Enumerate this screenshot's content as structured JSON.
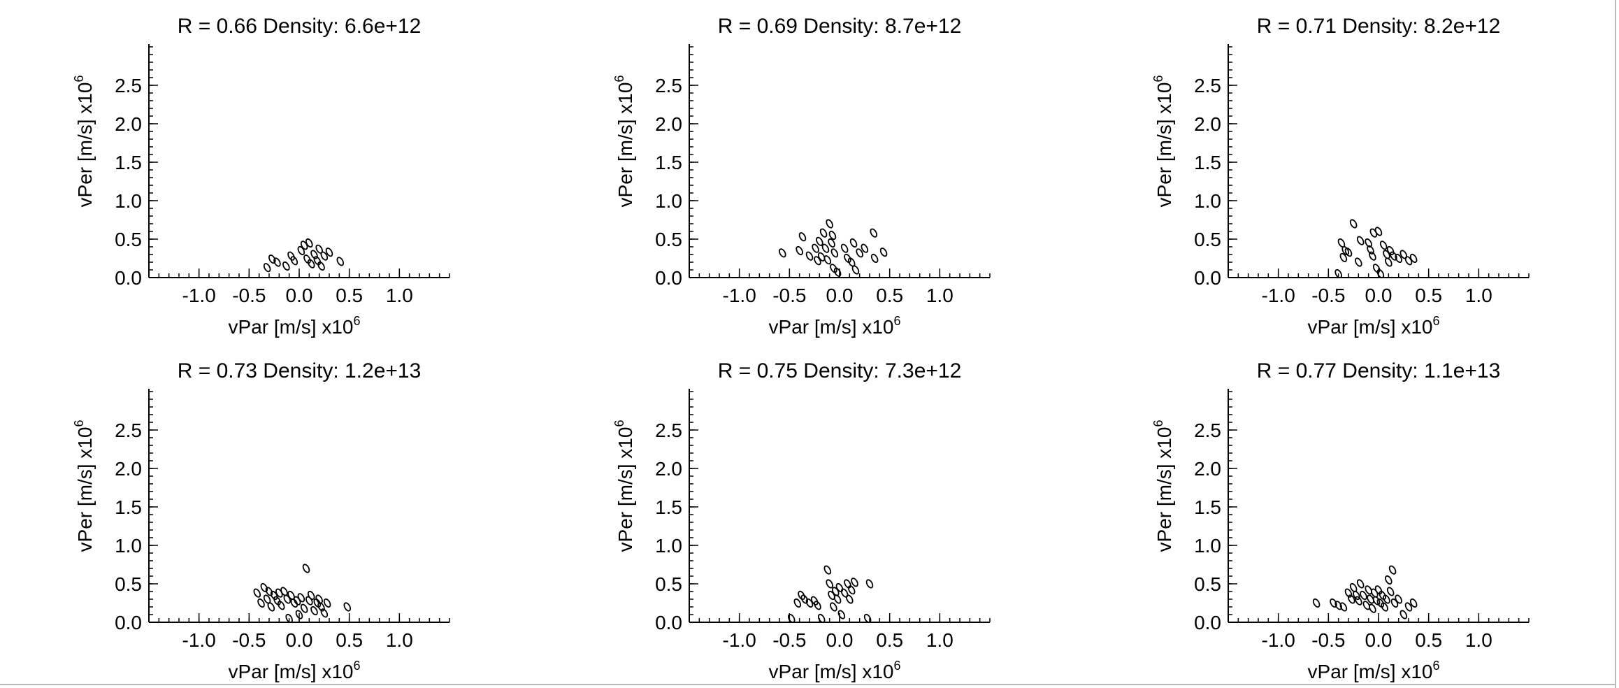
{
  "figure": {
    "x_factor": "x10",
    "y_factor": "x10",
    "factor_exponent": "6"
  },
  "chart_data": [
    {
      "type": "scatter",
      "title": "R = 0.66 Density: 6.6e+12",
      "xlabel": "vPar [m/s]",
      "ylabel": "vPer [m/s]",
      "xlim": [
        -1.5,
        1.5
      ],
      "ylim": [
        0.0,
        3.0
      ],
      "xticks": [
        -1.0,
        -0.5,
        0.0,
        0.5,
        1.0
      ],
      "xtick_labels": [
        "-1.0",
        "-0.5",
        "0.0",
        "0.5",
        "1.0"
      ],
      "yticks": [
        0.0,
        0.5,
        1.0,
        1.5,
        2.0,
        2.5
      ],
      "ytick_labels": [
        "0.0",
        "0.5",
        "1.0",
        "1.5",
        "2.0",
        "2.5"
      ],
      "grid": false,
      "marker": "open-ellipse",
      "points": [
        [
          -0.32,
          0.13
        ],
        [
          -0.27,
          0.24
        ],
        [
          -0.22,
          0.2
        ],
        [
          -0.13,
          0.15
        ],
        [
          -0.08,
          0.28
        ],
        [
          -0.05,
          0.22
        ],
        [
          0.02,
          0.35
        ],
        [
          0.05,
          0.42
        ],
        [
          0.08,
          0.24
        ],
        [
          0.1,
          0.45
        ],
        [
          0.12,
          0.18
        ],
        [
          0.15,
          0.3
        ],
        [
          0.18,
          0.22
        ],
        [
          0.2,
          0.37
        ],
        [
          0.22,
          0.15
        ],
        [
          0.25,
          0.28
        ],
        [
          0.3,
          0.33
        ],
        [
          0.41,
          0.21
        ]
      ]
    },
    {
      "type": "scatter",
      "title": "R = 0.69 Density: 8.7e+12",
      "xlabel": "vPar [m/s]",
      "ylabel": "vPer [m/s]",
      "xlim": [
        -1.5,
        1.5
      ],
      "ylim": [
        0.0,
        3.0
      ],
      "xticks": [
        -1.0,
        -0.5,
        0.0,
        0.5,
        1.0
      ],
      "xtick_labels": [
        "-1.0",
        "-0.5",
        "0.0",
        "0.5",
        "1.0"
      ],
      "yticks": [
        0.0,
        0.5,
        1.0,
        1.5,
        2.0,
        2.5
      ],
      "ytick_labels": [
        "0.0",
        "0.5",
        "1.0",
        "1.5",
        "2.0",
        "2.5"
      ],
      "grid": false,
      "marker": "open-ellipse",
      "points": [
        [
          -0.57,
          0.32
        ],
        [
          -0.4,
          0.35
        ],
        [
          -0.37,
          0.53
        ],
        [
          -0.3,
          0.28
        ],
        [
          -0.24,
          0.38
        ],
        [
          -0.22,
          0.22
        ],
        [
          -0.2,
          0.47
        ],
        [
          -0.18,
          0.27
        ],
        [
          -0.16,
          0.58
        ],
        [
          -0.14,
          0.38
        ],
        [
          -0.12,
          0.23
        ],
        [
          -0.1,
          0.7
        ],
        [
          -0.08,
          0.45
        ],
        [
          -0.07,
          0.55
        ],
        [
          -0.06,
          0.12
        ],
        [
          -0.05,
          0.32
        ],
        [
          -0.02,
          0.07
        ],
        [
          0.05,
          0.38
        ],
        [
          0.08,
          0.25
        ],
        [
          0.12,
          0.2
        ],
        [
          0.14,
          0.45
        ],
        [
          0.16,
          0.1
        ],
        [
          0.2,
          0.32
        ],
        [
          0.25,
          0.38
        ],
        [
          0.34,
          0.58
        ],
        [
          0.35,
          0.25
        ],
        [
          0.44,
          0.33
        ]
      ]
    },
    {
      "type": "scatter",
      "title": "R = 0.71 Density: 8.2e+12",
      "xlabel": "vPar [m/s]",
      "ylabel": "vPer [m/s]",
      "xlim": [
        -1.5,
        1.5
      ],
      "ylim": [
        0.0,
        3.0
      ],
      "xticks": [
        -1.0,
        -0.5,
        0.0,
        0.5,
        1.0
      ],
      "xtick_labels": [
        "-1.0",
        "-0.5",
        "0.0",
        "0.5",
        "1.0"
      ],
      "yticks": [
        0.0,
        0.5,
        1.0,
        1.5,
        2.0,
        2.5
      ],
      "ytick_labels": [
        "0.0",
        "0.5",
        "1.0",
        "1.5",
        "2.0",
        "2.5"
      ],
      "grid": false,
      "marker": "open-ellipse",
      "points": [
        [
          -0.4,
          0.05
        ],
        [
          -0.37,
          0.45
        ],
        [
          -0.35,
          0.26
        ],
        [
          -0.33,
          0.35
        ],
        [
          -0.3,
          0.33
        ],
        [
          -0.25,
          0.7
        ],
        [
          -0.2,
          0.2
        ],
        [
          -0.18,
          0.48
        ],
        [
          -0.1,
          0.45
        ],
        [
          -0.08,
          0.36
        ],
        [
          -0.06,
          0.28
        ],
        [
          -0.05,
          0.58
        ],
        [
          -0.02,
          0.12
        ],
        [
          0.0,
          0.6
        ],
        [
          0.02,
          0.05
        ],
        [
          0.05,
          0.42
        ],
        [
          0.08,
          0.3
        ],
        [
          0.1,
          0.2
        ],
        [
          0.12,
          0.35
        ],
        [
          0.15,
          0.28
        ],
        [
          0.2,
          0.25
        ],
        [
          0.25,
          0.3
        ],
        [
          0.3,
          0.22
        ],
        [
          0.35,
          0.25
        ]
      ]
    },
    {
      "type": "scatter",
      "title": "R = 0.73 Density: 1.2e+13",
      "xlabel": "vPar [m/s]",
      "ylabel": "vPer [m/s]",
      "xlim": [
        -1.5,
        1.5
      ],
      "ylim": [
        0.0,
        3.0
      ],
      "xticks": [
        -1.0,
        -0.5,
        0.0,
        0.5,
        1.0
      ],
      "xtick_labels": [
        "-1.0",
        "-0.5",
        "0.0",
        "0.5",
        "1.0"
      ],
      "yticks": [
        0.0,
        0.5,
        1.0,
        1.5,
        2.0,
        2.5
      ],
      "ytick_labels": [
        "0.0",
        "0.5",
        "1.0",
        "1.5",
        "2.0",
        "2.5"
      ],
      "grid": false,
      "marker": "open-ellipse",
      "points": [
        [
          -0.42,
          0.38
        ],
        [
          -0.38,
          0.25
        ],
        [
          -0.35,
          0.45
        ],
        [
          -0.32,
          0.3
        ],
        [
          -0.3,
          0.4
        ],
        [
          -0.28,
          0.2
        ],
        [
          -0.25,
          0.35
        ],
        [
          -0.22,
          0.28
        ],
        [
          -0.2,
          0.38
        ],
        [
          -0.18,
          0.22
        ],
        [
          -0.15,
          0.4
        ],
        [
          -0.12,
          0.3
        ],
        [
          -0.1,
          0.05
        ],
        [
          -0.08,
          0.35
        ],
        [
          -0.05,
          0.25
        ],
        [
          -0.02,
          0.28
        ],
        [
          0.0,
          0.1
        ],
        [
          0.02,
          0.32
        ],
        [
          0.05,
          0.18
        ],
        [
          0.07,
          0.7
        ],
        [
          0.1,
          0.28
        ],
        [
          0.12,
          0.35
        ],
        [
          0.15,
          0.15
        ],
        [
          0.18,
          0.25
        ],
        [
          0.2,
          0.3
        ],
        [
          0.22,
          0.2
        ],
        [
          0.25,
          0.12
        ],
        [
          0.28,
          0.25
        ],
        [
          0.48,
          0.2
        ]
      ]
    },
    {
      "type": "scatter",
      "title": "R = 0.75 Density: 7.3e+12",
      "xlabel": "vPar [m/s]",
      "ylabel": "vPer [m/s]",
      "xlim": [
        -1.5,
        1.5
      ],
      "ylim": [
        0.0,
        3.0
      ],
      "xticks": [
        -1.0,
        -0.5,
        0.0,
        0.5,
        1.0
      ],
      "xtick_labels": [
        "-1.0",
        "-0.5",
        "0.0",
        "0.5",
        "1.0"
      ],
      "yticks": [
        0.0,
        0.5,
        1.0,
        1.5,
        2.0,
        2.5
      ],
      "ytick_labels": [
        "0.0",
        "0.5",
        "1.0",
        "1.5",
        "2.0",
        "2.5"
      ],
      "grid": false,
      "marker": "open-ellipse",
      "points": [
        [
          -0.48,
          0.05
        ],
        [
          -0.42,
          0.25
        ],
        [
          -0.38,
          0.35
        ],
        [
          -0.35,
          0.3
        ],
        [
          -0.3,
          0.25
        ],
        [
          -0.25,
          0.28
        ],
        [
          -0.22,
          0.22
        ],
        [
          -0.18,
          0.05
        ],
        [
          -0.12,
          0.68
        ],
        [
          -0.1,
          0.5
        ],
        [
          -0.08,
          0.35
        ],
        [
          -0.06,
          0.2
        ],
        [
          -0.04,
          0.4
        ],
        [
          -0.02,
          0.3
        ],
        [
          0.0,
          0.45
        ],
        [
          0.02,
          0.1
        ],
        [
          0.05,
          0.38
        ],
        [
          0.08,
          0.5
        ],
        [
          0.1,
          0.3
        ],
        [
          0.12,
          0.42
        ],
        [
          0.15,
          0.52
        ],
        [
          0.28,
          0.05
        ],
        [
          0.3,
          0.5
        ]
      ]
    },
    {
      "type": "scatter",
      "title": "R = 0.77 Density: 1.1e+13",
      "xlabel": "vPar [m/s]",
      "ylabel": "vPer [m/s]",
      "xlim": [
        -1.5,
        1.5
      ],
      "ylim": [
        0.0,
        3.0
      ],
      "xticks": [
        -1.0,
        -0.5,
        0.0,
        0.5,
        1.0
      ],
      "xtick_labels": [
        "-1.0",
        "-0.5",
        "0.0",
        "0.5",
        "1.0"
      ],
      "yticks": [
        0.0,
        0.5,
        1.0,
        1.5,
        2.0,
        2.5
      ],
      "ytick_labels": [
        "0.0",
        "0.5",
        "1.0",
        "1.5",
        "2.0",
        "2.5"
      ],
      "grid": false,
      "marker": "open-ellipse",
      "points": [
        [
          -0.62,
          0.25
        ],
        [
          -0.45,
          0.25
        ],
        [
          -0.4,
          0.22
        ],
        [
          -0.35,
          0.2
        ],
        [
          -0.3,
          0.38
        ],
        [
          -0.27,
          0.3
        ],
        [
          -0.25,
          0.45
        ],
        [
          -0.22,
          0.35
        ],
        [
          -0.2,
          0.28
        ],
        [
          -0.18,
          0.5
        ],
        [
          -0.15,
          0.35
        ],
        [
          -0.12,
          0.22
        ],
        [
          -0.1,
          0.42
        ],
        [
          -0.08,
          0.3
        ],
        [
          -0.06,
          0.18
        ],
        [
          -0.04,
          0.38
        ],
        [
          -0.02,
          0.28
        ],
        [
          0.0,
          0.42
        ],
        [
          0.02,
          0.25
        ],
        [
          0.04,
          0.35
        ],
        [
          0.06,
          0.2
        ],
        [
          0.08,
          0.3
        ],
        [
          0.1,
          0.55
        ],
        [
          0.12,
          0.4
        ],
        [
          0.14,
          0.68
        ],
        [
          0.16,
          0.25
        ],
        [
          0.2,
          0.3
        ],
        [
          0.25,
          0.1
        ],
        [
          0.3,
          0.2
        ],
        [
          0.35,
          0.25
        ]
      ]
    }
  ]
}
